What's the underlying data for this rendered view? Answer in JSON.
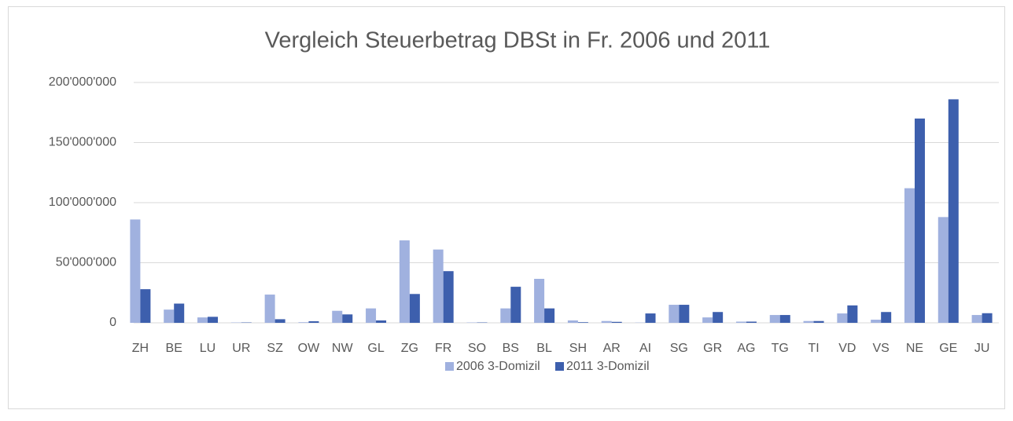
{
  "chart_data": {
    "type": "bar",
    "title": "Vergleich Steuerbetrag DBSt in Fr. 2006 und 2011",
    "categories": [
      "ZH",
      "BE",
      "LU",
      "UR",
      "SZ",
      "OW",
      "NW",
      "GL",
      "ZG",
      "FR",
      "SO",
      "BS",
      "BL",
      "SH",
      "AR",
      "AI",
      "SG",
      "GR",
      "AG",
      "TG",
      "TI",
      "VD",
      "VS",
      "NE",
      "GE",
      "JU"
    ],
    "series": [
      {
        "name": "2006 3-Domizil",
        "color": "#a0b1df",
        "values": [
          86000000,
          11000000,
          4500000,
          300000,
          23500000,
          500000,
          10000000,
          12000000,
          68600000,
          61000000,
          300000,
          12000000,
          36600000,
          2000000,
          1500000,
          200000,
          15000000,
          4500000,
          1000000,
          6500000,
          1500000,
          7800000,
          2600000,
          112000000,
          88000000,
          6500000
        ]
      },
      {
        "name": "2011 3-Domizil",
        "color": "#3d5fad",
        "values": [
          28000000,
          16000000,
          5000000,
          300000,
          3000000,
          1300000,
          7000000,
          2000000,
          24000000,
          43000000,
          300000,
          30000000,
          12000000,
          500000,
          800000,
          7800000,
          15000000,
          9000000,
          1000000,
          6500000,
          1500000,
          14500000,
          9000000,
          170000000,
          186000000,
          8000000
        ]
      }
    ],
    "ylim": [
      0,
      200000000
    ],
    "yticks": [
      0,
      {
        "value": 50000000,
        "label": "50'000'000"
      },
      {
        "value": 100000000,
        "label": "100'000'000"
      },
      {
        "value": 150000000,
        "label": "150'000'000"
      },
      {
        "value": 200000000,
        "label": "200'000'000"
      }
    ],
    "grid": true,
    "legend": "bottom"
  }
}
